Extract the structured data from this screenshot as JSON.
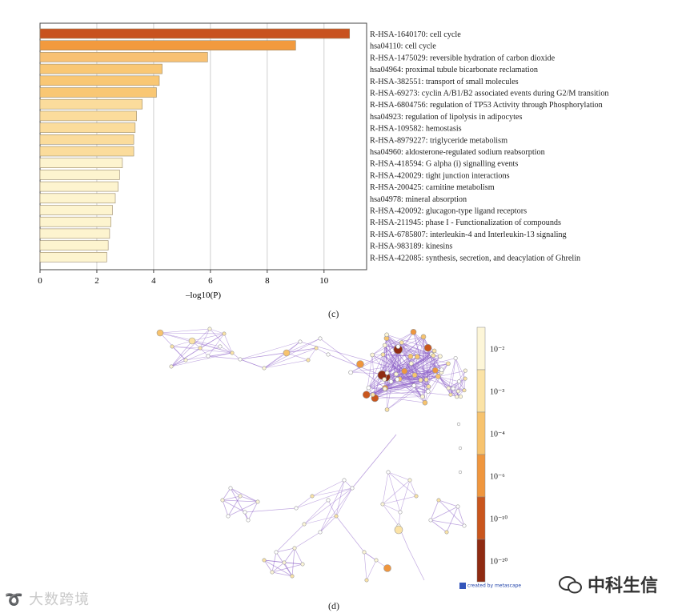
{
  "chart_data": [
    {
      "type": "bar",
      "orientation": "horizontal",
      "panel_label": "(c)",
      "xlabel": "–log10(P)",
      "xlim": [
        0,
        11.5
      ],
      "xticks": [
        "0",
        "2",
        "4",
        "6",
        "8",
        "10"
      ],
      "xtick_values": [
        0,
        2,
        4,
        6,
        8,
        10
      ],
      "grid": true,
      "categories": [
        "R-HSA-1640170: cell cycle",
        "hsa04110: cell cycle",
        "R-HSA-1475029: reversible hydration of carbon dioxide",
        "hsa04964: proximal tubule bicarbonate reclamation",
        "R-HSA-382551: transport of small molecules",
        "R-HSA-69273: cyclin A/B1/B2 associated events during G2/M transition",
        "R-HSA-6804756: regulation of TP53 Activity through Phosphorylation",
        "hsa04923: regulation of lipolysis in adipocytes",
        "R-HSA-109582: hemostasis",
        "R-HSA-8979227: triglyceride metabolism",
        "hsa04960: aldosterone-regulated sodium reabsorption",
        "R-HSA-418594: G alpha (i) signalling events",
        "R-HSA-420029: tight junction interactions",
        "R-HSA-200425: carnitine metabolism",
        "hsa04978: mineral absorption",
        "R-HSA-420092: glucagon-type ligand receptors",
        "R-HSA-211945: phase I - Functionalization of compounds",
        "R-HSA-6785807: interleukin-4 and Interleukin-13 signaling",
        "R-HSA-983189: kinesins",
        "R-HSA-422085: synthesis, secretion, and deacylation of Ghrelin"
      ],
      "values": [
        10.9,
        9.0,
        5.9,
        4.3,
        4.2,
        4.1,
        3.6,
        3.4,
        3.35,
        3.3,
        3.3,
        2.9,
        2.8,
        2.75,
        2.65,
        2.55,
        2.5,
        2.45,
        2.4,
        2.35
      ],
      "colors": [
        "#c8521f",
        "#f29a3e",
        "#f8c173",
        "#f9c774",
        "#f9c774",
        "#f9c774",
        "#fbdc9c",
        "#fbdc9c",
        "#fbdc9c",
        "#fbdc9c",
        "#fbdc9c",
        "#fdf4cf",
        "#fdf4cf",
        "#fdf4cf",
        "#fdf4cf",
        "#fdf4cf",
        "#fdf4cf",
        "#fdf4cf",
        "#fdf4cf",
        "#fdf4cf"
      ]
    },
    {
      "type": "network",
      "panel_label": "(d)",
      "colorbar": {
        "labels": [
          "10⁻²",
          "10⁻³",
          "10⁻⁴",
          "10⁻⁶",
          "10⁻¹⁰",
          "10⁻²⁰"
        ],
        "colors": [
          "#fdf6d8",
          "#fbe3a6",
          "#f7c36e",
          "#ef963e",
          "#c9561d",
          "#8f2b12"
        ]
      },
      "edge_color": "#8a5cc6",
      "footer_logo": "created by metascape"
    }
  ],
  "watermarks": {
    "left": "大数跨境",
    "right": "中科生信"
  }
}
